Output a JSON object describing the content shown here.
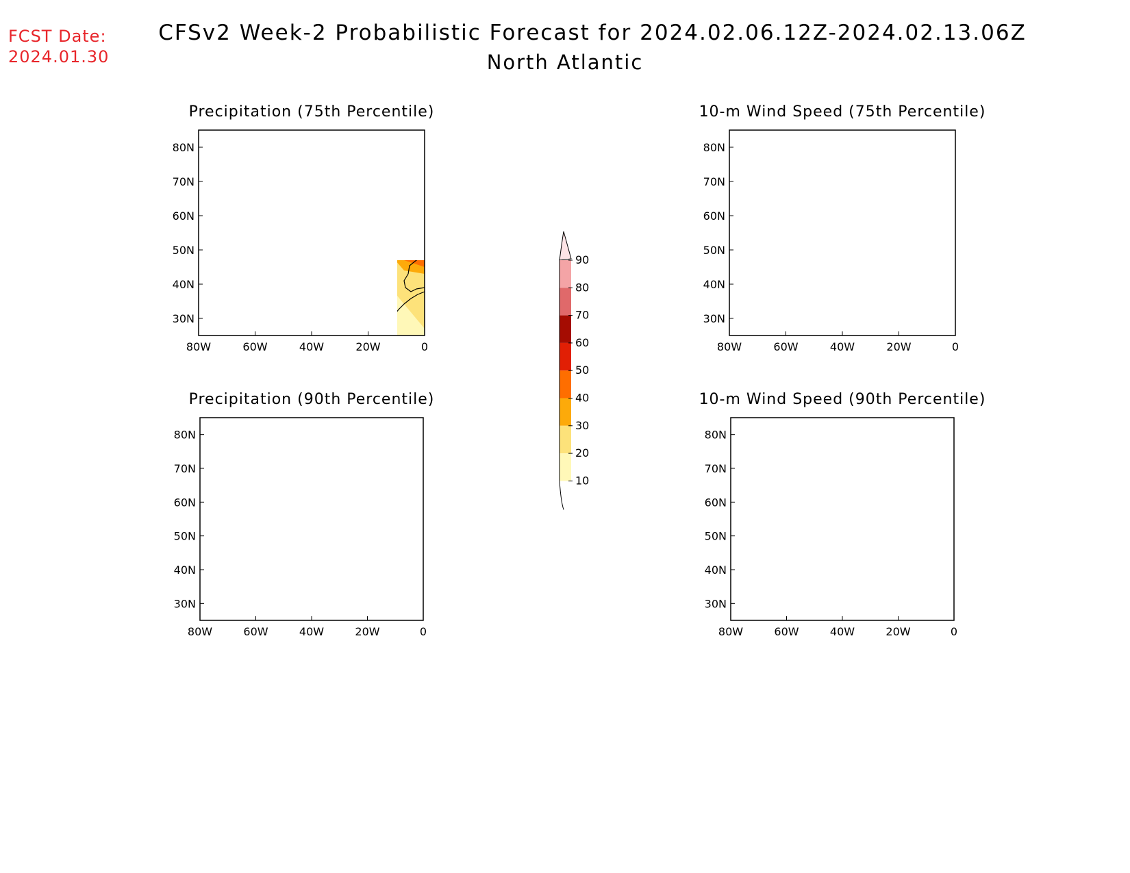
{
  "header": {
    "fcst_label": "FCST Date:",
    "fcst_value": "2024.01.30",
    "title": "CFSv2 Week-2 Probabilistic Forecast for 2024.02.06.12Z-2024.02.13.06Z",
    "subtitle": "North Atlantic"
  },
  "axes": {
    "lon_labels": [
      "80W",
      "60W",
      "40W",
      "20W",
      "0"
    ],
    "lat_labels": [
      "80N",
      "70N",
      "60N",
      "50N",
      "40N",
      "30N"
    ]
  },
  "panels": [
    {
      "id": "precip-75",
      "title": "Precipitation (75th Percentile)"
    },
    {
      "id": "wind-75",
      "title": "10-m Wind Speed (75th Percentile)"
    },
    {
      "id": "precip-90",
      "title": "Precipitation (90th Percentile)"
    },
    {
      "id": "wind-90",
      "title": "10-m Wind Speed (90th Percentile)"
    }
  ],
  "colorbar": {
    "levels": [
      "10",
      "20",
      "30",
      "40",
      "50",
      "60",
      "70",
      "80",
      "90"
    ],
    "colors": [
      "#fff8b8",
      "#fde27a",
      "#fdaa0a",
      "#fe6e00",
      "#e11f05",
      "#a50c02",
      "#e0696a",
      "#f4a4a6",
      "#fde4e6"
    ]
  },
  "colors": {
    "c10": "#fff8b8",
    "c20": "#fde27a",
    "c30": "#fdaa0a",
    "c40": "#fe6e00",
    "c50": "#e11f05",
    "title_red": "#e8262b"
  }
}
